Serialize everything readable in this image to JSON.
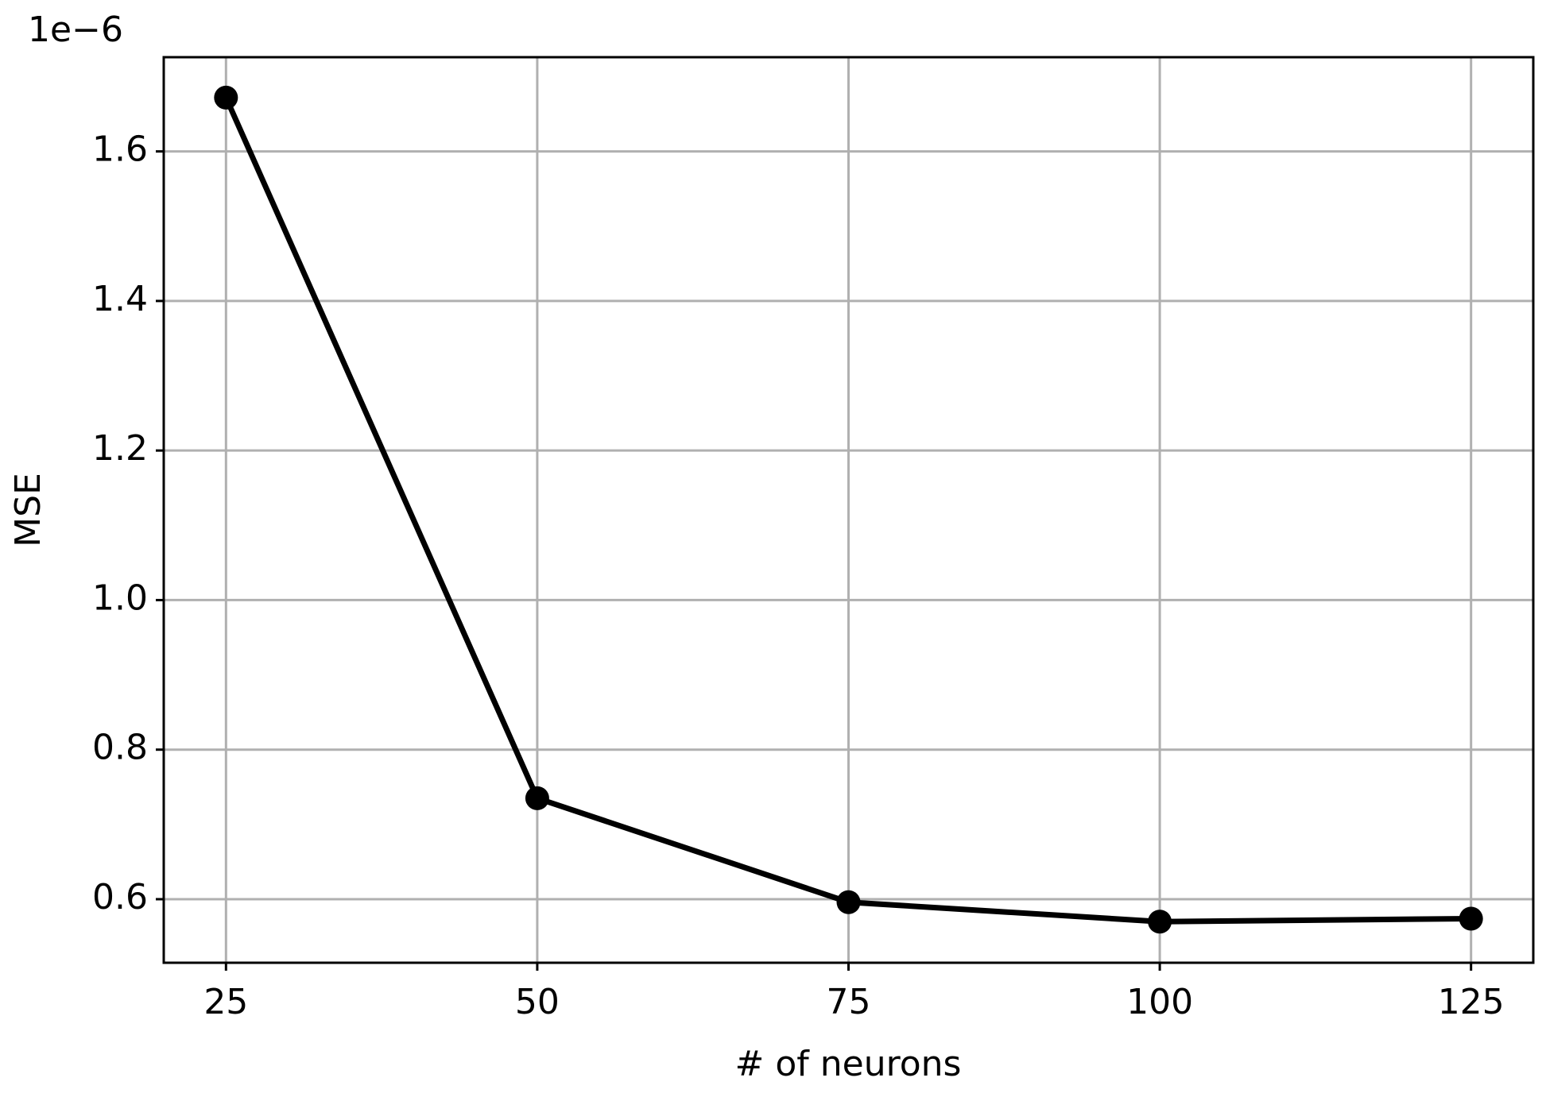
{
  "chart_data": {
    "type": "line",
    "x_label": "# of neurons",
    "y_label": "MSE",
    "y_offset_label": "1e−6",
    "x": [
      25,
      50,
      75,
      100,
      125
    ],
    "series": [
      {
        "name": "MSE",
        "color": "#000000",
        "values": [
          1.672,
          0.735,
          0.596,
          0.57,
          0.574
        ]
      }
    ],
    "xlim": [
      20,
      130
    ],
    "ylim": [
      0.515,
      1.726
    ],
    "xticks": [
      25,
      50,
      75,
      100,
      125
    ],
    "yticks": [
      0.6,
      0.8,
      {
        "value": 1.0,
        "label": "1.0"
      },
      1.2,
      1.4,
      1.6
    ],
    "grid": true
  }
}
